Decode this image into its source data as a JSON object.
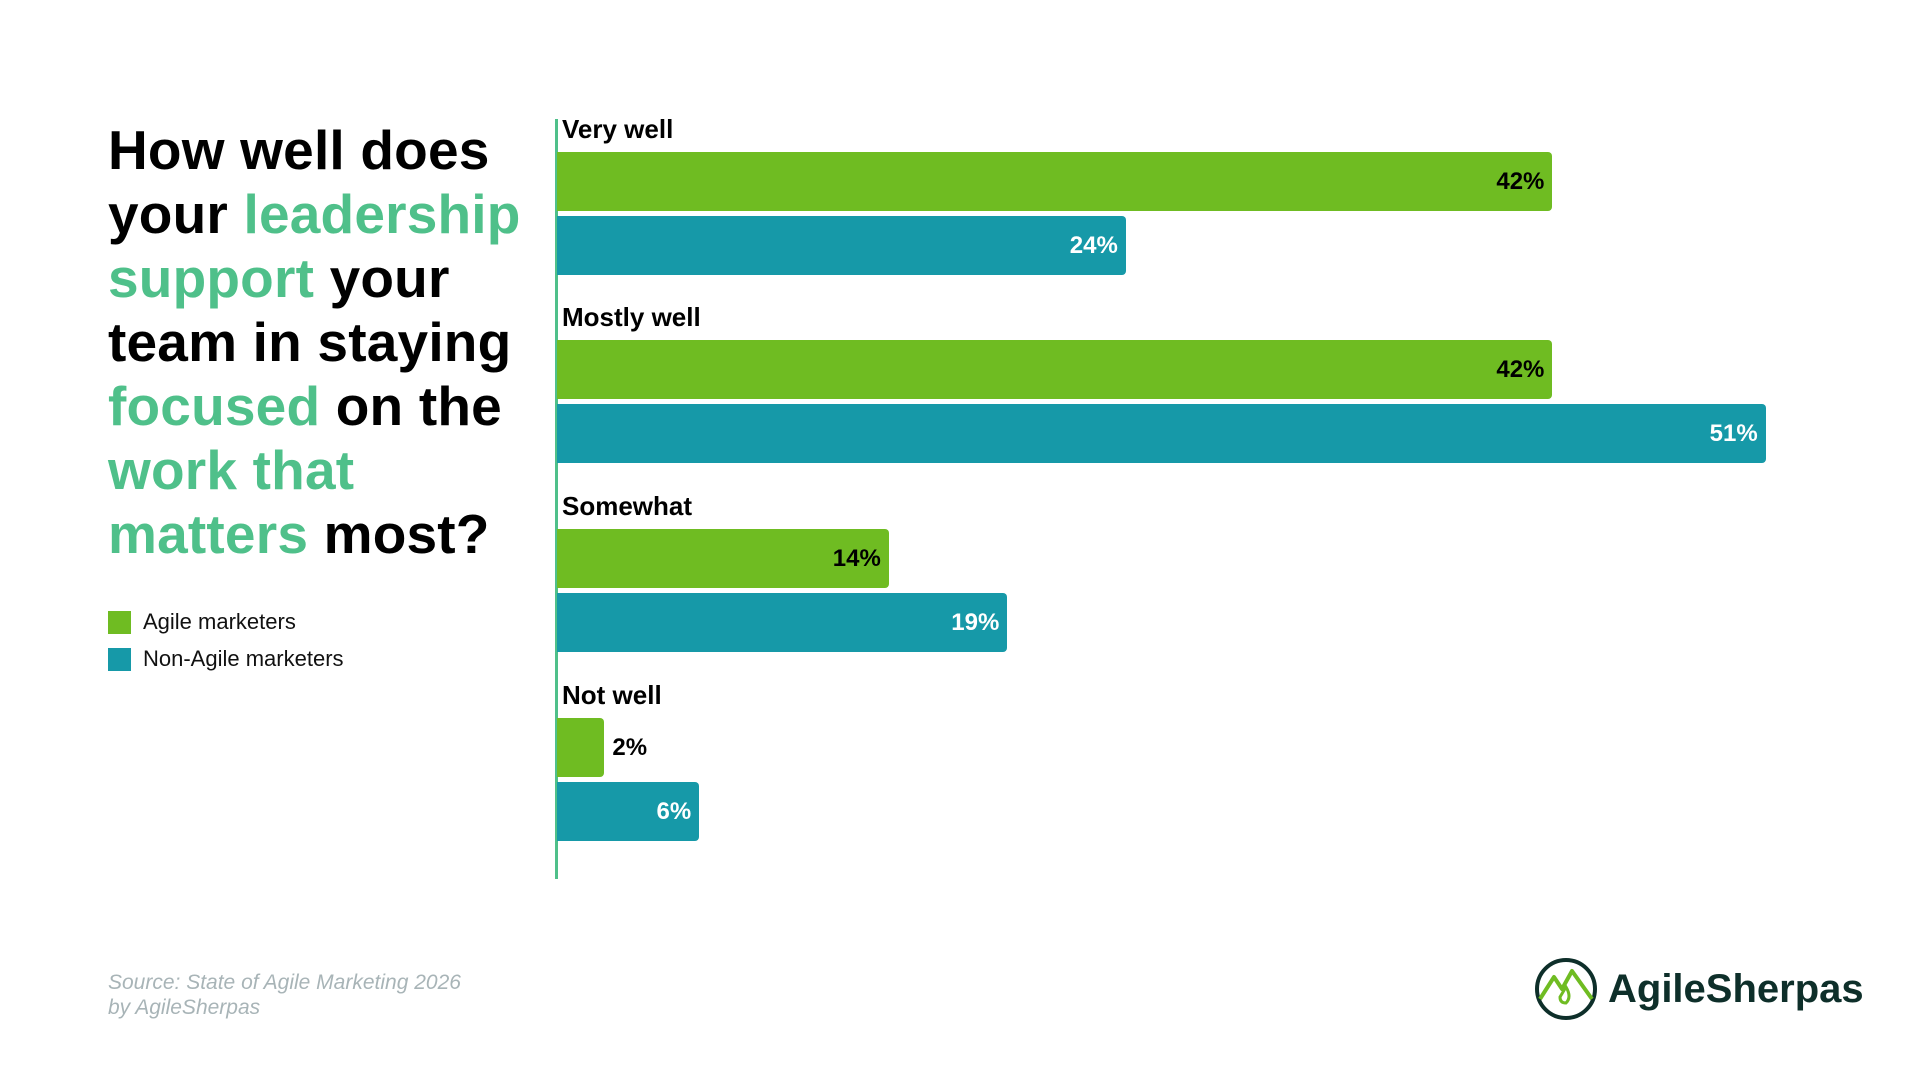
{
  "title_lines": [
    [
      {
        "text": "How well does",
        "hl": false
      }
    ],
    [
      {
        "text": "your ",
        "hl": false
      },
      {
        "text": "leadership",
        "hl": true
      }
    ],
    [
      {
        "text": "support",
        "hl": true
      },
      {
        "text": " your",
        "hl": false
      }
    ],
    [
      {
        "text": "team in staying",
        "hl": false
      }
    ],
    [
      {
        "text": "focused",
        "hl": true
      },
      {
        "text": " on the",
        "hl": false
      }
    ],
    [
      {
        "text": "work that",
        "hl": true
      }
    ],
    [
      {
        "text": "matters",
        "hl": true
      },
      {
        "text": " most?",
        "hl": false
      }
    ]
  ],
  "legend": [
    {
      "label": "Agile marketers",
      "color": "#6fbc22"
    },
    {
      "label": "Non-Agile marketers",
      "color": "#1699a8"
    }
  ],
  "source": {
    "line1": "Source: State of Agile Marketing 2026",
    "line2": "by AgileSherpas"
  },
  "logo": {
    "text": "AgileSherpas"
  },
  "colors": {
    "highlight": "#4fc08a",
    "axis": "#4fc08a"
  },
  "chart_data": {
    "type": "bar",
    "orientation": "horizontal",
    "categories": [
      "Very well",
      "Mostly well",
      "Somewhat",
      "Not well"
    ],
    "series": [
      {
        "name": "Agile marketers",
        "color": "#6fbc22",
        "values": [
          42,
          42,
          14,
          2
        ],
        "labels": [
          "42%",
          "42%",
          "14%",
          "2%"
        ]
      },
      {
        "name": "Non-Agile marketers",
        "color": "#1699a8",
        "values": [
          24,
          51,
          19,
          6
        ],
        "labels": [
          "24%",
          "51%",
          "19%",
          "6%"
        ]
      }
    ],
    "unit": "%",
    "grid": false,
    "legend_position": "left"
  }
}
